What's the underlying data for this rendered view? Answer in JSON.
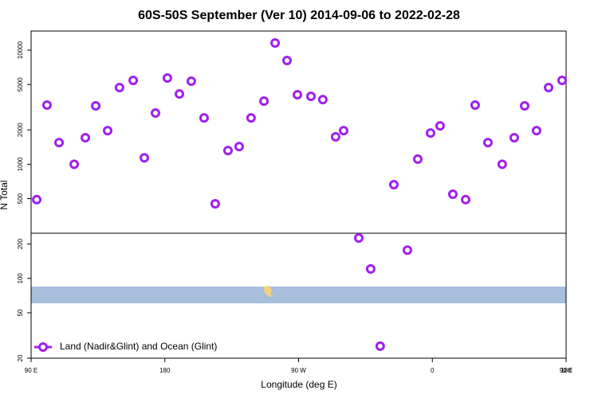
{
  "chart_data": {
    "type": "scatter",
    "title": "60S-50S September (Ver 10)   2014-09-06 to 2022-02-28",
    "xlabel": "Longitude (deg E)",
    "ylabel": "N Total",
    "log_y": true,
    "legend": "lower left",
    "xlim": [
      90,
      450
    ],
    "xticks": [
      {
        "value": 90,
        "label": "90 E"
      },
      180,
      {
        "value": 270,
        "label": "90 W"
      },
      {
        "value": 360,
        "label": "0"
      },
      {
        "value": 450,
        "label": "90 E"
      },
      {
        "value": 540,
        "label": "180"
      }
    ],
    "ylim": [
      20,
      14700
    ],
    "yticks": [
      20,
      50,
      100,
      200,
      500,
      1000,
      2000,
      5000,
      10000
    ],
    "series": [
      {
        "name": "Land (Nadir&Glint) and Ocean (Glint)",
        "color": "#a020f0",
        "x": [
          93.8,
          100.7,
          108.8,
          119,
          126.5,
          133.5,
          141.5,
          149.5,
          158.7,
          166.2,
          173.7,
          181.7,
          189.8,
          197.8,
          206.4,
          213.9,
          222.5,
          230,
          238,
          246.7,
          254.2,
          262.2,
          269.2,
          278.3,
          286.3,
          294.9,
          300.3,
          310.5,
          318.5,
          324.9,
          334.1,
          343.2,
          350.2,
          358.8,
          365.2,
          373.8,
          382.4,
          388.8,
          397.4,
          407,
          415.1,
          422.1,
          430.1,
          438.2,
          447.3
        ],
        "values": [
          490,
          3300,
          1550,
          1000,
          1710,
          3250,
          1970,
          4700,
          5430,
          1140,
          2810,
          5700,
          4130,
          5340,
          2550,
          451,
          1320,
          1430,
          2550,
          3580,
          11550,
          8110,
          4070,
          3940,
          3690,
          1740,
          1970,
          226,
          121,
          25.5,
          663,
          177,
          1110,
          1880,
          2170,
          547,
          490,
          3300,
          1550,
          1000,
          1710,
          3250,
          1970,
          4700,
          5430
        ]
      }
    ]
  }
}
